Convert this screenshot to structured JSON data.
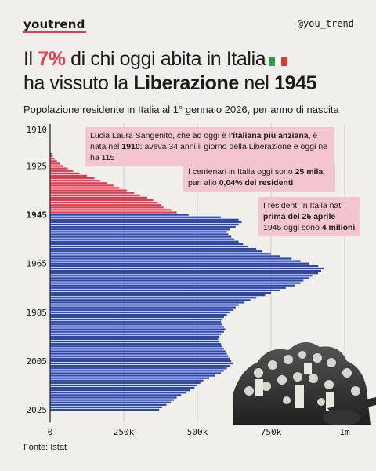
{
  "brand": "youtrend",
  "handle": "@you_trend",
  "headline": {
    "l1_a": "Il ",
    "l1_pct": "7%",
    "l1_b": " di chi oggi abita in Italia",
    "l2_a": "ha vissuto la ",
    "l2_bold": "Liberazione",
    "l2_b": " nel ",
    "l2_year": "1945"
  },
  "subtitle": "Popolazione residente in Italia al 1° gennaio 2026, per anno di nascita",
  "callouts": [
    {
      "parts": [
        [
          "Lucia Laura Sangenito, che ad oggi è ",
          false
        ],
        [
          "l'italiana più anziana",
          true
        ],
        [
          ", è nata nel ",
          false
        ],
        [
          "1910",
          true
        ],
        [
          ": aveva 34 anni il giorno della Liberazione e oggi ne ha 115",
          false
        ]
      ]
    },
    {
      "parts": [
        [
          "I centenari in Italia oggi sono ",
          false
        ],
        [
          "25 mila",
          true
        ],
        [
          ", pari allo ",
          false
        ],
        [
          "0,04% dei residenti",
          true
        ]
      ]
    },
    {
      "parts": [
        [
          "I residenti in Italia nati ",
          false
        ],
        [
          "prima del 25 aprile",
          true
        ],
        [
          " 1945 oggi sono ",
          false
        ],
        [
          "4 milioni",
          true
        ]
      ]
    }
  ],
  "source": "Fonte: Istat",
  "colors": {
    "pre1945": "#e8374f",
    "post1945": "#2b45b5",
    "accent": "#e8374f",
    "callout_bg": "#f3c6cf",
    "flag_green": "#2a9d4b",
    "flag_white": "#ffffff",
    "flag_red": "#e03c31"
  },
  "chart_data": {
    "type": "bar",
    "orientation": "horizontal",
    "y_ticks": [
      "1910",
      "1925",
      "1945",
      "1965",
      "1985",
      "2005",
      "2025"
    ],
    "x_ticks": [
      "0",
      "250k",
      "500k",
      "750k",
      "1m"
    ],
    "xlim": [
      0,
      1000000
    ],
    "ylim": [
      1910,
      2025
    ],
    "series": [
      {
        "name": "",
        "color": "#e8374f",
        "x": [
          1920,
          1921,
          1922,
          1923,
          1924,
          1925,
          1926,
          1927,
          1928,
          1929,
          1930,
          1931,
          1932,
          1933,
          1934,
          1935,
          1936,
          1937,
          1938,
          1939,
          1940,
          1941,
          1942,
          1943,
          1944
        ],
        "values": [
          5000,
          9000,
          15000,
          23000,
          32000,
          45000,
          60000,
          78000,
          100000,
          125000,
          150000,
          170000,
          192000,
          215000,
          235000,
          260000,
          285000,
          305000,
          330000,
          350000,
          365000,
          375000,
          385000,
          410000,
          430000
        ]
      },
      {
        "name": "",
        "color": "#2b45b5",
        "x": [
          1945,
          1946,
          1947,
          1948,
          1949,
          1950,
          1951,
          1952,
          1953,
          1954,
          1955,
          1956,
          1957,
          1958,
          1959,
          1960,
          1961,
          1962,
          1963,
          1964,
          1965,
          1966,
          1967,
          1968,
          1969,
          1970,
          1971,
          1972,
          1973,
          1974,
          1975,
          1976,
          1977,
          1978,
          1979,
          1980,
          1981,
          1982,
          1983,
          1984,
          1985,
          1986,
          1987,
          1988,
          1989,
          1990,
          1991,
          1992,
          1993,
          1994,
          1995,
          1996,
          1997,
          1998,
          1999,
          2000,
          2001,
          2002,
          2003,
          2004,
          2005,
          2006,
          2007,
          2008,
          2009,
          2010,
          2011,
          2012,
          2013,
          2014,
          2015,
          2016,
          2017,
          2018,
          2019,
          2020,
          2021,
          2022,
          2023,
          2024,
          2025
        ],
        "values": [
          470000,
          580000,
          640000,
          650000,
          640000,
          630000,
          610000,
          600000,
          605000,
          615000,
          625000,
          640000,
          655000,
          670000,
          700000,
          720000,
          750000,
          780000,
          820000,
          850000,
          880000,
          910000,
          930000,
          920000,
          910000,
          890000,
          880000,
          860000,
          850000,
          830000,
          800000,
          780000,
          750000,
          730000,
          700000,
          680000,
          660000,
          640000,
          630000,
          620000,
          610000,
          600000,
          590000,
          585000,
          580000,
          585000,
          590000,
          595000,
          590000,
          580000,
          575000,
          570000,
          575000,
          580000,
          585000,
          590000,
          595000,
          600000,
          605000,
          610000,
          615000,
          620000,
          610000,
          600000,
          590000,
          580000,
          560000,
          540000,
          520000,
          510000,
          500000,
          490000,
          475000,
          460000,
          445000,
          430000,
          420000,
          410000,
          395000,
          380000,
          370000
        ]
      }
    ]
  }
}
